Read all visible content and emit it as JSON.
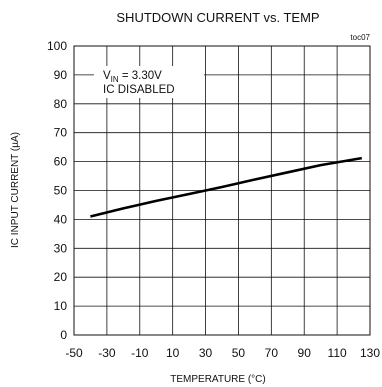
{
  "chart_data": {
    "type": "line",
    "title": "SHUTDOWN CURRENT vs. TEMP",
    "figure_id": "toc07",
    "xlabel": "TEMPERATURE (°C)",
    "ylabel": "IC INPUT CURRENT (µA)",
    "xlim": [
      -50,
      130
    ],
    "ylim": [
      0,
      100
    ],
    "x_ticks": [
      -50,
      -30,
      -10,
      10,
      30,
      50,
      70,
      90,
      110,
      130
    ],
    "y_ticks": [
      0,
      10,
      20,
      30,
      40,
      50,
      60,
      70,
      80,
      90,
      100
    ],
    "grid": true,
    "annotations": {
      "vin_label": "V",
      "vin_sub": "IN",
      "vin_value": " = 3.30V",
      "state": "IC DISABLED"
    },
    "series": [
      {
        "color": "#000000",
        "x": [
          -40,
          -20,
          0,
          20,
          40,
          60,
          80,
          100,
          125
        ],
        "y": [
          41.0,
          43.8,
          46.4,
          48.8,
          51.2,
          53.8,
          56.3,
          58.8,
          61.2
        ]
      }
    ]
  }
}
